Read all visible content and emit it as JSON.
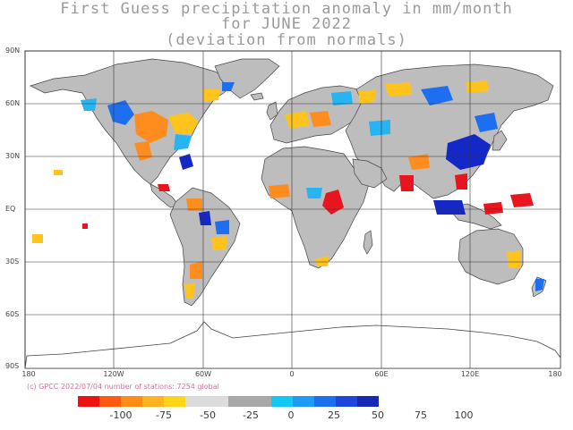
{
  "title": {
    "line1": "First Guess precipitation anomaly in mm/month",
    "line2": "for JUNE 2022",
    "line3": "(deviation from normals)"
  },
  "credit": "(c) GPCC 2022/07/04 number of stations: 7254 global",
  "axes": {
    "lat_labels": [
      "90N",
      "60N",
      "30N",
      "EQ",
      "30S",
      "60S",
      "90S"
    ],
    "lon_labels": [
      "180",
      "120W",
      "60W",
      "0",
      "60E",
      "120E",
      "180"
    ]
  },
  "colorbar": {
    "labels": [
      "-100",
      "-75",
      "-50",
      "-25",
      "0",
      "25",
      "50",
      "75",
      "100"
    ],
    "colors": [
      "#ee1111",
      "#ff5a10",
      "#ff8c14",
      "#ffb31e",
      "#ffd51a",
      "#dcdcdc",
      "#dcdcdc",
      "#a8a8a8",
      "#a8a8a8",
      "#11c8f0",
      "#1e9bf5",
      "#1e6ef0",
      "#1e46dc",
      "#1428b4"
    ]
  },
  "colors": {
    "strong_dry": "#e8141e",
    "dry": "#ff8c1e",
    "slight_dry": "#ffc31e",
    "neutral": "#bdbdbd",
    "slight_wet": "#28b4f0",
    "wet": "#1e6ef0",
    "strong_wet": "#1428c8"
  }
}
